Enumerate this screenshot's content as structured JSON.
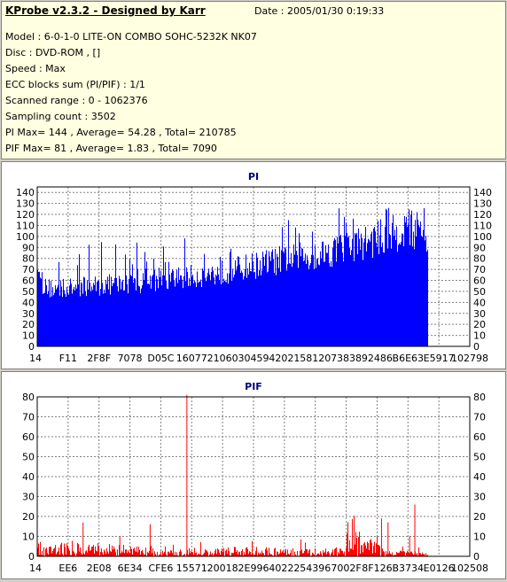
{
  "header": {
    "title": "KProbe v2.3.2 - Designed by Karr",
    "date": "Date : 2005/01/30 0:19:33",
    "lines": [
      "Model : 6-0-1-0 LITE-ON COMBO SOHC-5232K NK07",
      "Disc : DVD-ROM ,  []",
      "Speed : Max",
      "ECC blocks sum (PI/PIF) : 1/1",
      "Scanned range : 0 - 1062376",
      "Sampling count : 3502",
      "PI Max= 144 , Average= 54.28 , Total= 210785",
      "PIF Max= 81 , Average= 1.83 , Total= 7090"
    ]
  },
  "chart_data": [
    {
      "type": "bar",
      "title": "PI",
      "ylim": [
        0,
        145
      ],
      "yticks": [
        0,
        10,
        20,
        30,
        40,
        50,
        60,
        70,
        80,
        90,
        100,
        110,
        120,
        130,
        140
      ],
      "xticks": [
        "14",
        "F11",
        "2F8F",
        "7078",
        "D05C",
        "16077",
        "21060",
        "30459",
        "42021",
        "58120",
        "73838",
        "92486",
        "B6E63",
        "E5917",
        "102798"
      ],
      "grid": true,
      "color": "#0000ff",
      "profile": [
        [
          0,
          58
        ],
        [
          0.05,
          55
        ],
        [
          0.1,
          57
        ],
        [
          0.15,
          59
        ],
        [
          0.2,
          60
        ],
        [
          0.25,
          61
        ],
        [
          0.3,
          62
        ],
        [
          0.35,
          65
        ],
        [
          0.4,
          68
        ],
        [
          0.45,
          70
        ],
        [
          0.5,
          74
        ],
        [
          0.55,
          78
        ],
        [
          0.6,
          82
        ],
        [
          0.65,
          85
        ],
        [
          0.7,
          88
        ],
        [
          0.75,
          92
        ],
        [
          0.8,
          97
        ],
        [
          0.85,
          102
        ],
        [
          0.9,
          108
        ],
        [
          0.95,
          113
        ],
        [
          0.98,
          112
        ],
        [
          1.0,
          105
        ]
      ],
      "max": 144,
      "data_end_fraction": 0.905
    },
    {
      "type": "bar",
      "title": "PIF",
      "ylim": [
        0,
        80
      ],
      "yticks": [
        0,
        10,
        20,
        30,
        40,
        50,
        60,
        70,
        80
      ],
      "xticks": [
        "14",
        "EE6",
        "2E08",
        "6E34",
        "CFE6",
        "15571",
        "20018",
        "2E996",
        "40222",
        "54396",
        "7002F",
        "8F126",
        "B3734",
        "E0126",
        "102508"
      ],
      "grid": true,
      "color": "#ff0000",
      "profile": [
        [
          0,
          5
        ],
        [
          0.1,
          5
        ],
        [
          0.2,
          4
        ],
        [
          0.3,
          2.5
        ],
        [
          0.4,
          2
        ],
        [
          0.5,
          3
        ],
        [
          0.6,
          3
        ],
        [
          0.7,
          2.5
        ],
        [
          0.78,
          3
        ],
        [
          0.8,
          15
        ],
        [
          0.82,
          12
        ],
        [
          0.83,
          4
        ],
        [
          0.86,
          6
        ],
        [
          0.88,
          3
        ],
        [
          0.9,
          2
        ],
        [
          1.0,
          1.5
        ]
      ],
      "spikes": [
        [
          0.105,
          17
        ],
        [
          0.19,
          10
        ],
        [
          0.26,
          16
        ],
        [
          0.345,
          81
        ],
        [
          0.795,
          19
        ],
        [
          0.81,
          17
        ],
        [
          0.872,
          26
        ],
        [
          0.86,
          10
        ]
      ],
      "max": 81,
      "data_end_fraction": 0.905
    }
  ]
}
